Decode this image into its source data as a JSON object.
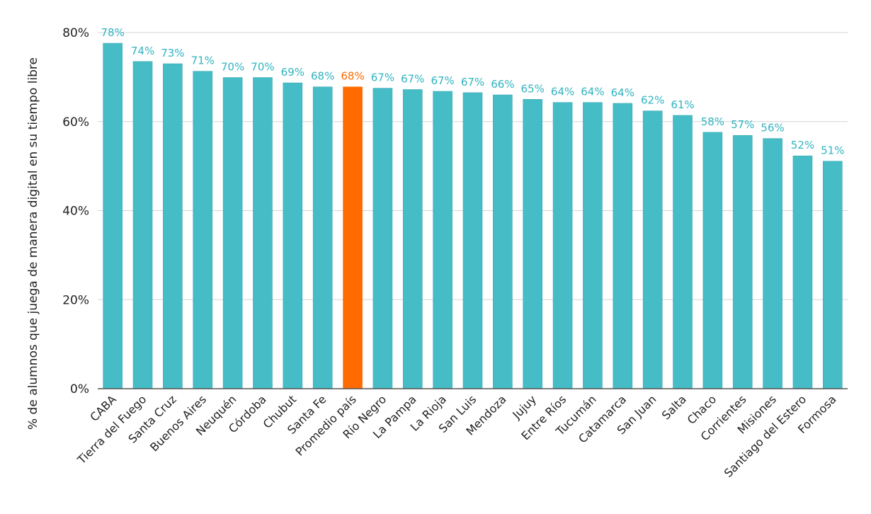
{
  "chart_data": {
    "type": "bar",
    "ylabel": "% de alumnos que juega de manera digital en su tiempo libre",
    "xlabel": "",
    "ylim": [
      0,
      80
    ],
    "yticks": [
      0,
      20,
      40,
      60,
      80
    ],
    "ytick_labels": [
      "0%",
      "20%",
      "40%",
      "60%",
      "80%"
    ],
    "grid": "horizontal",
    "categories": [
      "CABA",
      "Tierra del Fuego",
      "Santa Cruz",
      "Buenos Aires",
      "Neuquén",
      "Córdoba",
      "Chubut",
      "Santa Fe",
      "Promedio país",
      "Río Negro",
      "La Pampa",
      "La Rioja",
      "San Luis",
      "Mendoza",
      "Jujuy",
      "Entre Ríos",
      "Tucumán",
      "Catamarca",
      "San Juan",
      "Salta",
      "Chaco",
      "Corrientes",
      "Misiones",
      "Santiago del Estero",
      "Formosa"
    ],
    "values": [
      77.6,
      73.5,
      73.0,
      71.3,
      69.9,
      69.9,
      68.7,
      67.8,
      67.8,
      67.5,
      67.2,
      66.8,
      66.5,
      66.0,
      65.0,
      64.3,
      64.3,
      64.1,
      62.4,
      61.4,
      57.6,
      56.9,
      56.2,
      52.3,
      51.1
    ],
    "data_labels": [
      "78%",
      "74%",
      "73%",
      "71%",
      "70%",
      "70%",
      "69%",
      "68%",
      "68%",
      "67%",
      "67%",
      "67%",
      "67%",
      "66%",
      "65%",
      "64%",
      "64%",
      "64%",
      "62%",
      "61%",
      "58%",
      "57%",
      "56%",
      "52%",
      "51%"
    ],
    "highlight_category": "Promedio país",
    "colors": {
      "bar": "#45bcc6",
      "bar_stroke": "#3aa9b2",
      "highlight": "#ff6b00",
      "label": "#2fb4c0",
      "highlight_label": "#ff6b00",
      "grid": "#d4d4d4",
      "axis": "#555555"
    }
  }
}
